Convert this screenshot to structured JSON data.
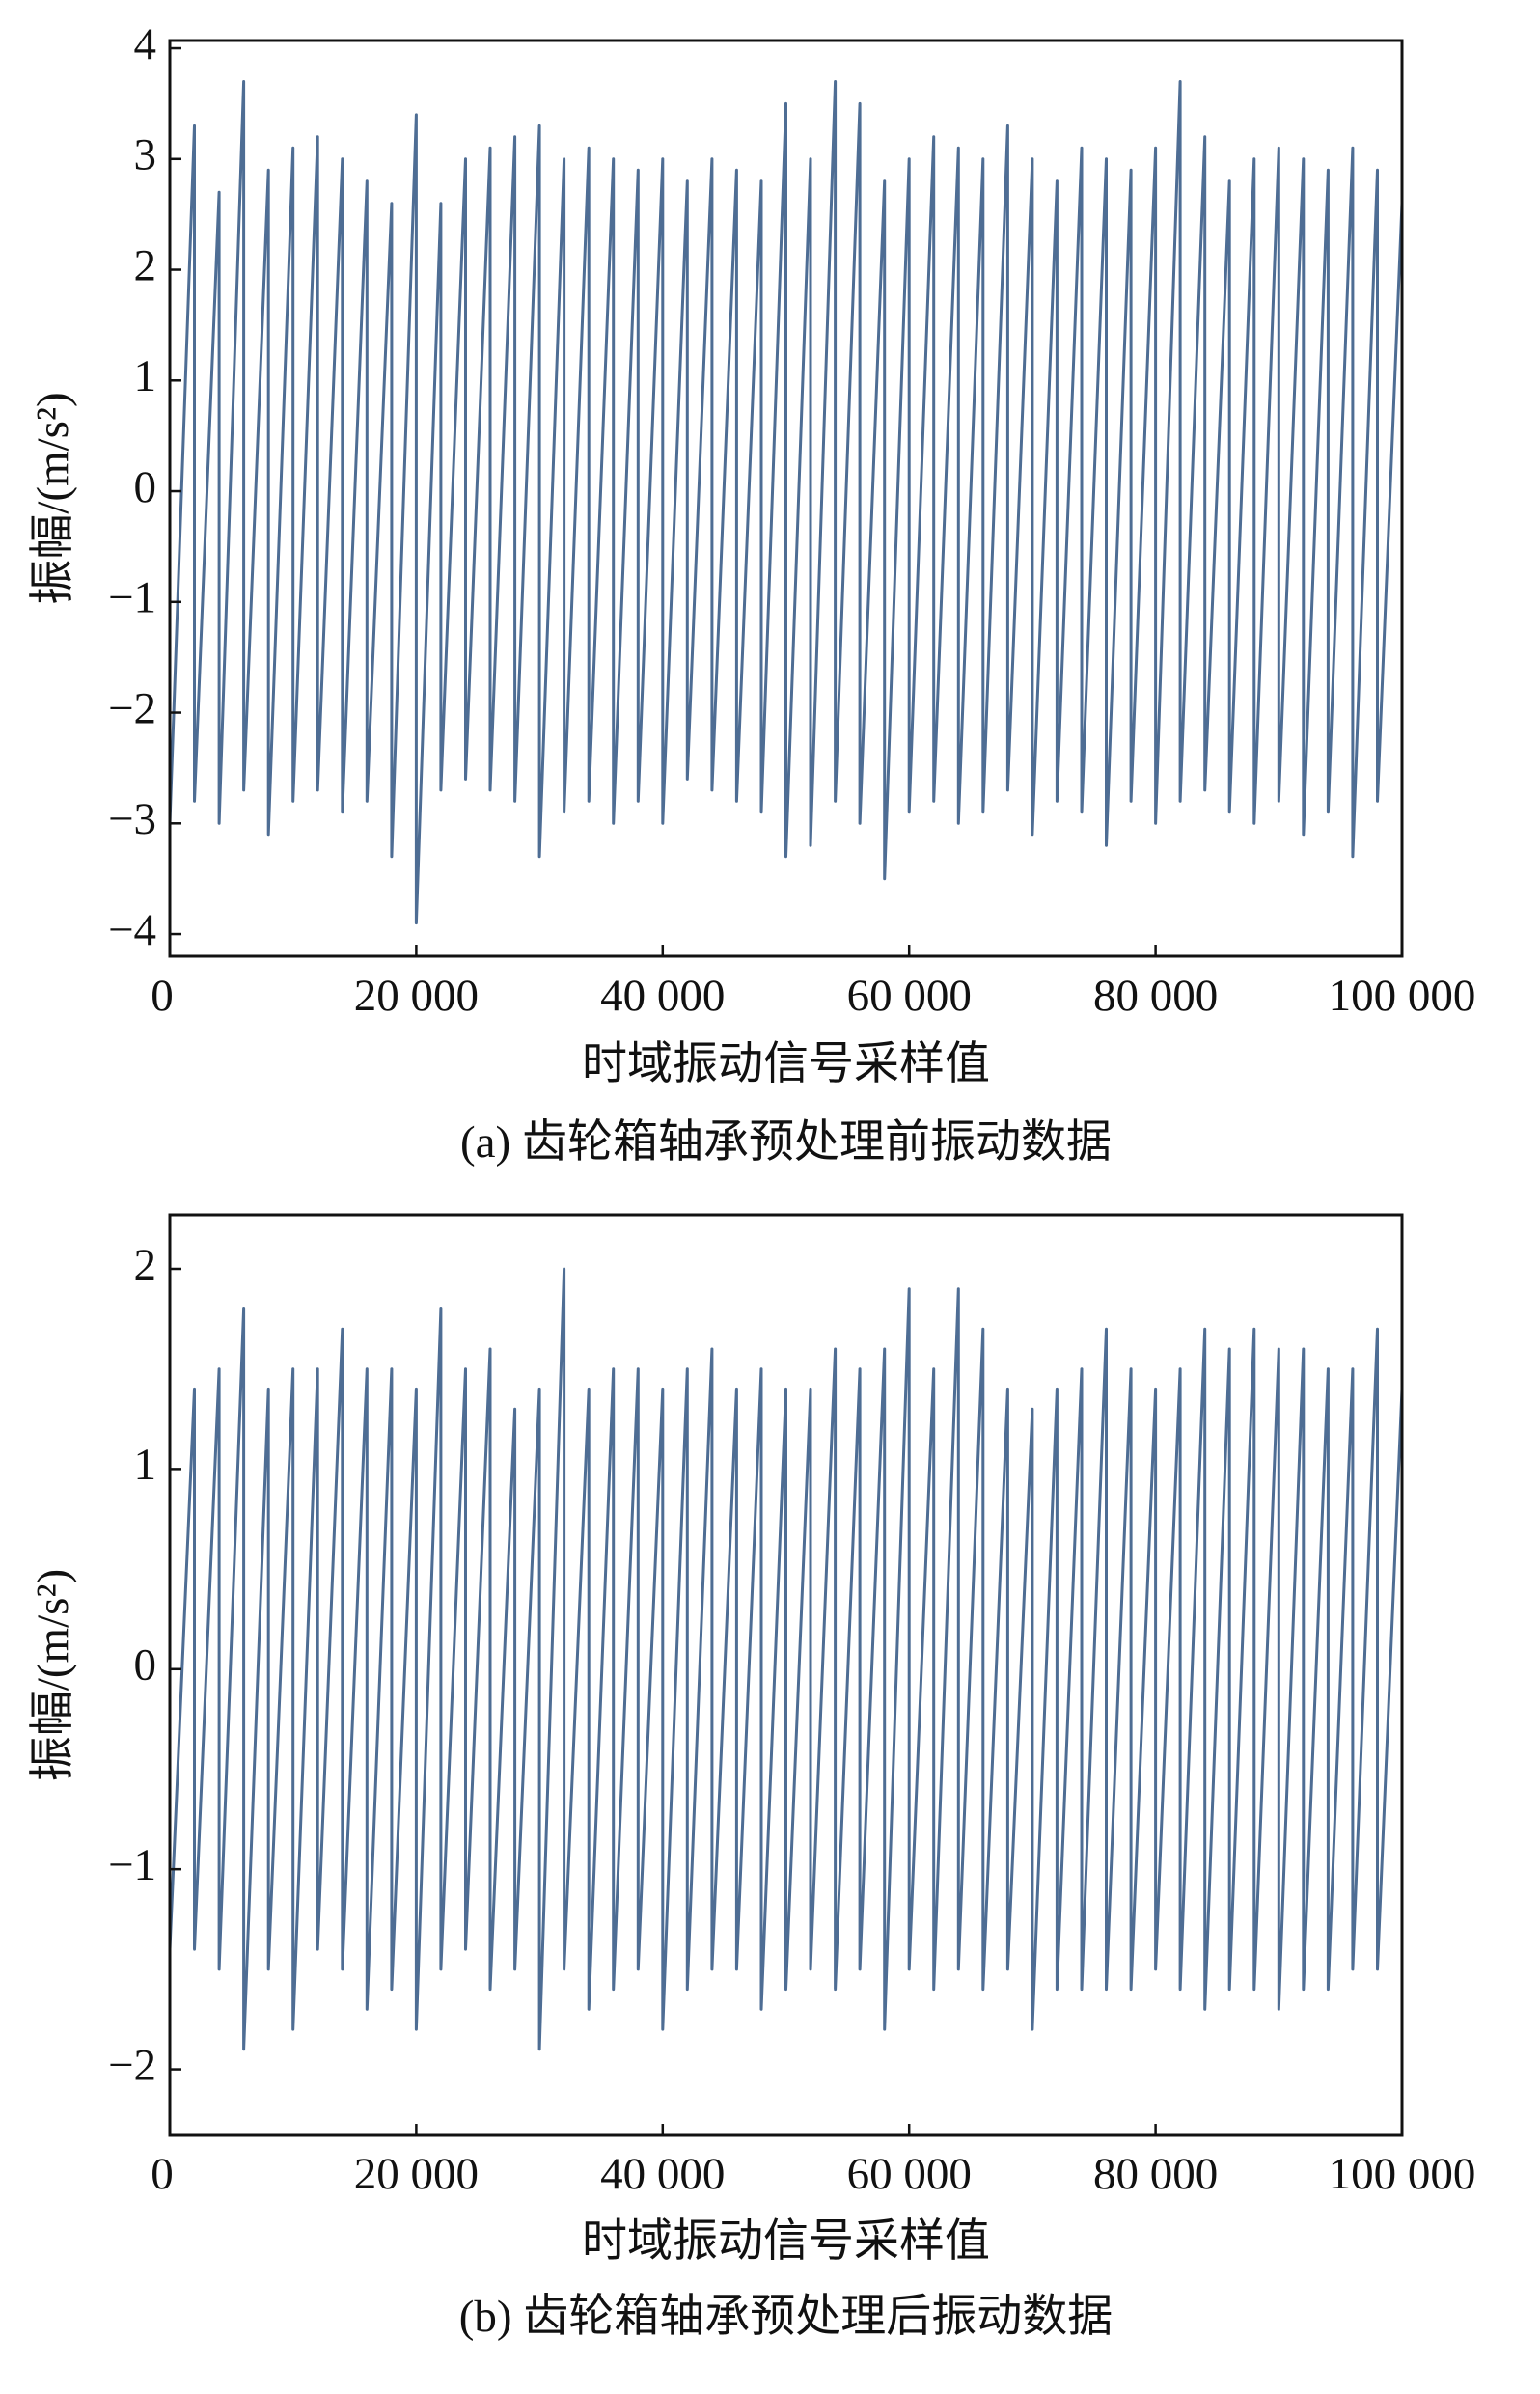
{
  "chart_data": [
    {
      "type": "line",
      "caption": "(a) 齿轮箱轴承预处理前振动数据",
      "xlabel": "时域振动信号采样值",
      "ylabel": "振幅/(m/s²)",
      "color": "#4e6d94",
      "xlim": [
        0,
        100000
      ],
      "ylim": [
        -4.2,
        4.07
      ],
      "xticks": [
        0,
        {
          "value": 20000,
          "label": "20 000"
        },
        {
          "value": 40000,
          "label": "40 000"
        },
        {
          "value": 60000,
          "label": "60 000"
        },
        {
          "value": 80000,
          "label": "80 000"
        },
        {
          "value": 100000,
          "label": "100 000"
        }
      ],
      "yticks": [
        {
          "value": -4,
          "label": "−4"
        },
        {
          "value": -3,
          "label": "−3"
        },
        {
          "value": -2,
          "label": "−2"
        },
        {
          "value": -1,
          "label": "−1"
        },
        0,
        1,
        2,
        3,
        4
      ],
      "x": [
        0,
        0,
        2000,
        2000,
        4000,
        4000,
        6000,
        6000,
        8000,
        8000,
        10000,
        10000,
        12000,
        12000,
        14000,
        14000,
        16000,
        16000,
        18000,
        18000,
        20000,
        20000,
        22000,
        22000,
        24000,
        24000,
        26000,
        26000,
        28000,
        28000,
        30000,
        30000,
        32000,
        32000,
        34000,
        34000,
        36000,
        36000,
        38000,
        38000,
        40000,
        40000,
        42000,
        42000,
        44000,
        44000,
        46000,
        46000,
        48000,
        48000,
        50000,
        50000,
        52000,
        52000,
        54000,
        54000,
        56000,
        56000,
        58000,
        58000,
        60000,
        60000,
        62000,
        62000,
        64000,
        64000,
        66000,
        66000,
        68000,
        68000,
        70000,
        70000,
        72000,
        72000,
        74000,
        74000,
        76000,
        76000,
        78000,
        78000,
        80000,
        80000,
        82000,
        82000,
        84000,
        84000,
        86000,
        86000,
        88000,
        88000,
        90000,
        90000,
        92000,
        92000,
        94000,
        94000,
        96000,
        96000,
        98000,
        98000,
        100000,
        100000
      ],
      "values": [
        2.8,
        -3.0,
        3.3,
        -2.8,
        2.7,
        -3.0,
        3.7,
        -2.7,
        2.9,
        -3.1,
        3.1,
        -2.8,
        3.2,
        -2.7,
        3.0,
        -2.9,
        2.8,
        -2.8,
        2.6,
        -3.3,
        3.4,
        -3.9,
        2.6,
        -2.7,
        3.0,
        -2.6,
        3.1,
        -2.7,
        3.2,
        -2.8,
        3.3,
        -3.3,
        3.0,
        -2.9,
        3.1,
        -2.8,
        3.0,
        -3.0,
        2.9,
        -2.8,
        3.0,
        -3.0,
        2.8,
        -2.6,
        3.0,
        -2.7,
        2.9,
        -2.8,
        2.8,
        -2.9,
        3.5,
        -3.3,
        3.0,
        -3.2,
        3.7,
        -2.8,
        3.5,
        -3.0,
        2.8,
        -3.5,
        3.0,
        -2.9,
        3.2,
        -2.8,
        3.1,
        -3.0,
        3.0,
        -2.9,
        3.3,
        -2.7,
        3.0,
        -3.1,
        2.8,
        -2.8,
        3.1,
        -2.9,
        3.0,
        -3.2,
        2.9,
        -2.8,
        3.1,
        -3.0,
        3.7,
        -2.8,
        3.2,
        -2.7,
        2.8,
        -2.9,
        3.0,
        -3.0,
        3.1,
        -2.8,
        3.0,
        -3.1,
        2.9,
        -2.9,
        3.1,
        -3.3,
        2.9,
        -2.8,
        2.6,
        -2.7
      ]
    },
    {
      "type": "line",
      "caption": "(b) 齿轮箱轴承预处理后振动数据",
      "xlabel": "时域振动信号采样值",
      "ylabel": "振幅/(m/s²)",
      "color": "#4e6d94",
      "xlim": [
        0,
        100000
      ],
      "ylim": [
        -2.33,
        2.27
      ],
      "xticks": [
        0,
        {
          "value": 20000,
          "label": "20 000"
        },
        {
          "value": 40000,
          "label": "40 000"
        },
        {
          "value": 60000,
          "label": "60 000"
        },
        {
          "value": 80000,
          "label": "80 000"
        },
        {
          "value": 100000,
          "label": "100 000"
        }
      ],
      "yticks": [
        {
          "value": -2,
          "label": "−2"
        },
        {
          "value": -1,
          "label": "−1"
        },
        0,
        1,
        2
      ],
      "x": [
        0,
        0,
        2000,
        2000,
        4000,
        4000,
        6000,
        6000,
        8000,
        8000,
        10000,
        10000,
        12000,
        12000,
        14000,
        14000,
        16000,
        16000,
        18000,
        18000,
        20000,
        20000,
        22000,
        22000,
        24000,
        24000,
        26000,
        26000,
        28000,
        28000,
        30000,
        30000,
        32000,
        32000,
        34000,
        34000,
        36000,
        36000,
        38000,
        38000,
        40000,
        40000,
        42000,
        42000,
        44000,
        44000,
        46000,
        46000,
        48000,
        48000,
        50000,
        50000,
        52000,
        52000,
        54000,
        54000,
        56000,
        56000,
        58000,
        58000,
        60000,
        60000,
        62000,
        62000,
        64000,
        64000,
        66000,
        66000,
        68000,
        68000,
        70000,
        70000,
        72000,
        72000,
        74000,
        74000,
        76000,
        76000,
        78000,
        78000,
        80000,
        80000,
        82000,
        82000,
        84000,
        84000,
        86000,
        86000,
        88000,
        88000,
        90000,
        90000,
        92000,
        92000,
        94000,
        94000,
        96000,
        96000,
        98000,
        98000,
        100000,
        100000
      ],
      "values": [
        1.3,
        -1.4,
        1.4,
        -1.4,
        1.5,
        -1.5,
        1.8,
        -1.9,
        1.4,
        -1.5,
        1.5,
        -1.8,
        1.5,
        -1.4,
        1.7,
        -1.5,
        1.5,
        -1.7,
        1.5,
        -1.6,
        1.4,
        -1.8,
        1.8,
        -1.5,
        1.5,
        -1.4,
        1.6,
        -1.6,
        1.3,
        -1.5,
        1.4,
        -1.9,
        2.0,
        -1.5,
        1.4,
        -1.7,
        1.5,
        -1.6,
        1.5,
        -1.5,
        1.4,
        -1.8,
        1.5,
        -1.6,
        1.6,
        -1.5,
        1.4,
        -1.5,
        1.5,
        -1.7,
        1.4,
        -1.6,
        1.4,
        -1.5,
        1.6,
        -1.6,
        1.5,
        -1.5,
        1.6,
        -1.8,
        1.9,
        -1.5,
        1.5,
        -1.6,
        1.9,
        -1.5,
        1.7,
        -1.6,
        1.4,
        -1.5,
        1.3,
        -1.8,
        1.4,
        -1.6,
        1.5,
        -1.6,
        1.7,
        -1.6,
        1.5,
        -1.6,
        1.4,
        -1.5,
        1.5,
        -1.6,
        1.7,
        -1.7,
        1.6,
        -1.6,
        1.7,
        -1.6,
        1.6,
        -1.7,
        1.6,
        -1.6,
        1.5,
        -1.6,
        1.5,
        -1.5,
        1.7,
        -1.5,
        1.4,
        -1.4
      ]
    }
  ]
}
